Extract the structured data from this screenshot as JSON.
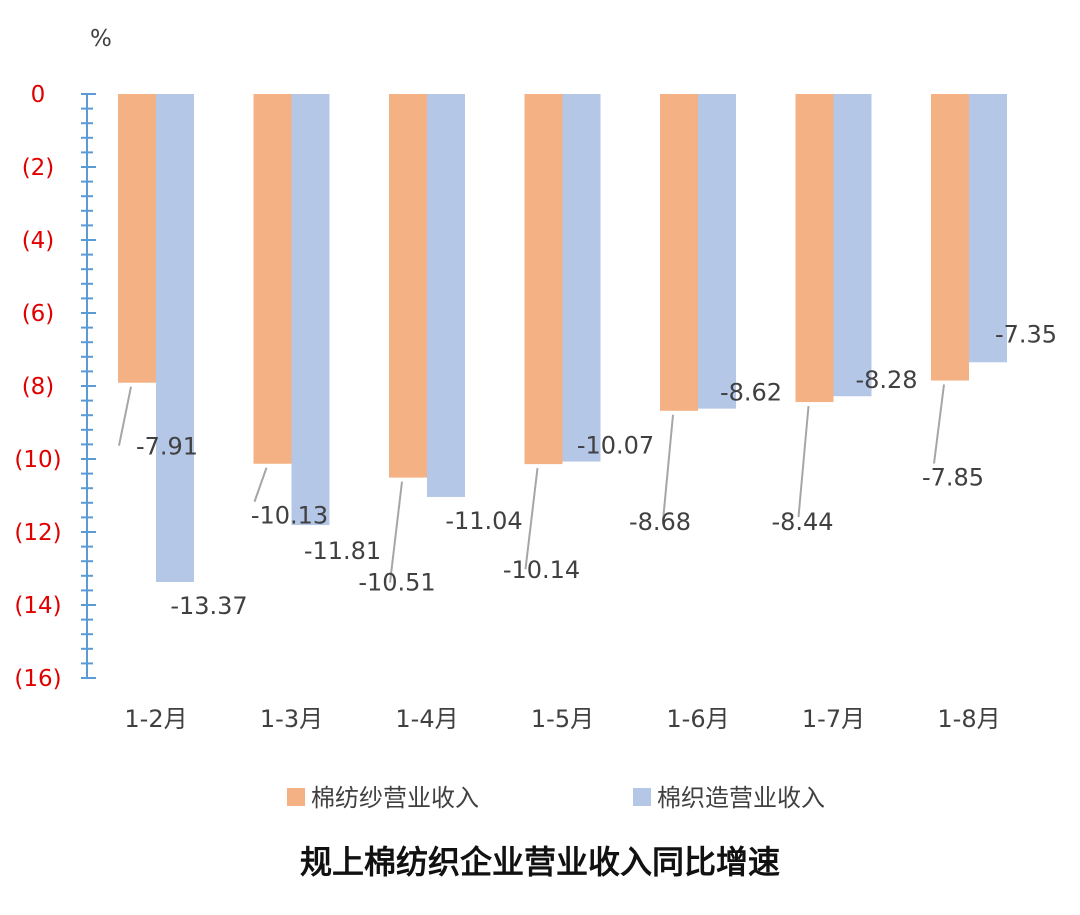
{
  "chart_data": {
    "type": "bar",
    "title": "规上棉纺织企业营业收入同比增速",
    "unit": "%",
    "categories": [
      "1-2月",
      "1-3月",
      "1-4月",
      "1-5月",
      "1-6月",
      "1-7月",
      "1-8月"
    ],
    "series": [
      {
        "name": "棉纺纱营业收入",
        "color": "#F4B183",
        "values": [
          -7.91,
          -10.13,
          -10.51,
          -10.14,
          -8.68,
          -8.44,
          -7.85
        ],
        "labels": [
          "-7.91",
          "-10.13",
          "-10.51",
          "-10.14",
          "-8.68",
          "-8.44",
          "-7.85"
        ]
      },
      {
        "name": "棉织造营业收入",
        "color": "#B4C7E7",
        "values": [
          -13.37,
          -11.81,
          -11.04,
          -10.07,
          -8.62,
          -8.28,
          -7.35
        ],
        "labels": [
          "-13.37",
          "-11.81",
          "-11.04",
          "-10.07",
          "-8.62",
          "-8.28",
          "-7.35"
        ]
      }
    ],
    "ylim": [
      -16,
      0
    ],
    "yticks": [
      0,
      -2,
      -4,
      -6,
      -8,
      -10,
      -12,
      -14,
      -16
    ],
    "ytick_labels": [
      "0",
      "(2)",
      "(4)",
      "(6)",
      "(8)",
      "(10)",
      "(12)",
      "(14)",
      "(16)"
    ],
    "ytick_label_color": "#E00000",
    "axis_color": "#5B9BD5",
    "leader_line_color": "#A6A6A6",
    "legend_position": "bottom",
    "grid": false
  }
}
